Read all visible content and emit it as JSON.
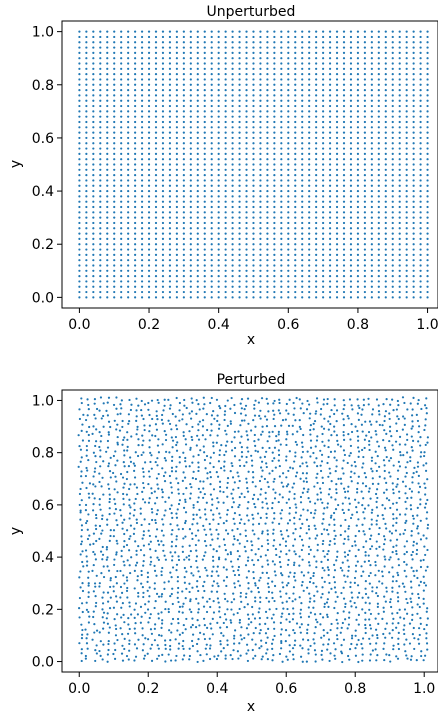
{
  "chart_data": [
    {
      "type": "scatter",
      "title": "Unperturbed",
      "xlabel": "x",
      "ylabel": "y",
      "xlim": [
        -0.05,
        1.03
      ],
      "ylim": [
        -0.04,
        1.04
      ],
      "xticks": [
        "0.0",
        "0.2",
        "0.4",
        "0.6",
        "0.8",
        "1.0"
      ],
      "yticks": [
        "0.0",
        "0.2",
        "0.4",
        "0.6",
        "0.8",
        "1.0"
      ],
      "grid": false,
      "point_color": "#1f77b4",
      "points": {
        "kind": "regular_grid",
        "x_start": 0.0,
        "x_end": 0.99,
        "x_step": 0.02,
        "y_start": 0.0,
        "y_end": 0.99,
        "y_step": 0.02
      }
    },
    {
      "type": "scatter",
      "title": "Perturbed",
      "xlabel": "x",
      "ylabel": "y",
      "xlim": [
        -0.05,
        1.04
      ],
      "ylim": [
        -0.04,
        1.04
      ],
      "xticks": [
        "0.0",
        "0.2",
        "0.4",
        "0.6",
        "0.8",
        "1.0"
      ],
      "yticks": [
        "0.0",
        "0.2",
        "0.4",
        "0.6",
        "0.8",
        "1.0"
      ],
      "grid": false,
      "point_color": "#1f77b4",
      "points": {
        "kind": "perturbed_grid",
        "x_start": 0.0,
        "x_end": 0.99,
        "x_step": 0.02,
        "y_start": 0.0,
        "y_end": 0.99,
        "y_step": 0.02,
        "jitter": 0.007
      }
    }
  ]
}
